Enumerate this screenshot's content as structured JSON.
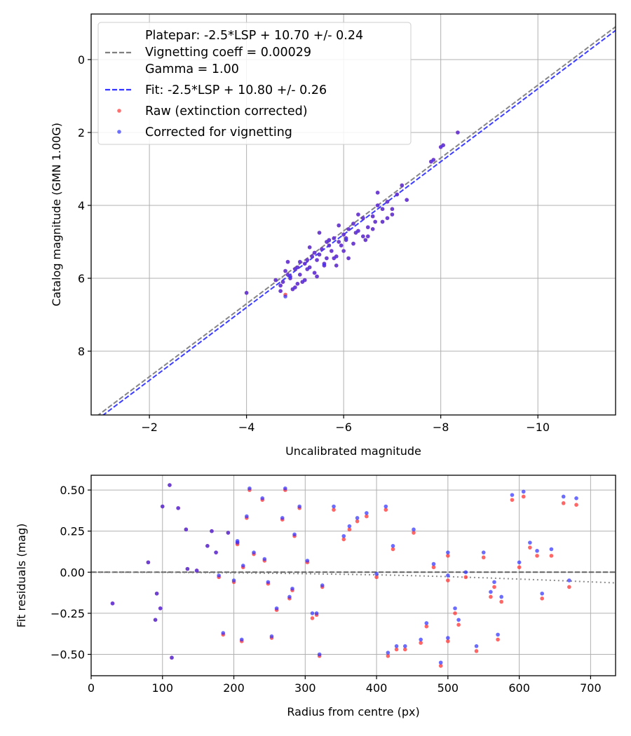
{
  "figure": {
    "legend": [
      {
        "label": "Platepar: -2.5*LSP + 10.70 +/- 0.24\nVignetting coeff = 0.00029\nGamma = 1.00",
        "style": "dashed-line",
        "color": "#808080"
      },
      {
        "label": "Fit: -2.5*LSP + 10.80 +/- 0.26",
        "style": "dashed-line",
        "color": "#3333ff"
      },
      {
        "label": "Raw (extinction corrected)",
        "style": "marker",
        "color": "#ff3333"
      },
      {
        "label": "Corrected for vignetting",
        "style": "marker",
        "color": "#3333ff"
      }
    ]
  },
  "chart_data": [
    {
      "type": "scatter",
      "xlabel": "Uncalibrated magnitude",
      "ylabel": "Catalog magnitude (GMN 1.00G)",
      "xlim": [
        -0.8,
        -11.6
      ],
      "ylim": [
        9.75,
        -1.25
      ],
      "xticks": [
        -2,
        -4,
        -6,
        -8,
        -10
      ],
      "xtick_labels": [
        "−2",
        "−4",
        "−6",
        "−8",
        "−10"
      ],
      "yticks": [
        0,
        2,
        4,
        6,
        8
      ],
      "ytick_labels": [
        "0",
        "2",
        "4",
        "6",
        "8"
      ],
      "grid": true,
      "legend_location": "top-left",
      "lines": [
        {
          "name": "Platepar",
          "color": "#808080",
          "dash": true,
          "intercept": 10.7
        },
        {
          "name": "Fit",
          "color": "#3333ff",
          "dash": true,
          "intercept": 10.8
        }
      ],
      "series": [
        {
          "name": "Raw (extinction corrected)",
          "color": "#ff3333",
          "x": [
            -4.0,
            -4.6,
            -4.7,
            -4.75,
            -4.8,
            -4.85,
            -4.9,
            -4.95,
            -5.0,
            -5.05,
            -5.1,
            -5.15,
            -5.2,
            -5.25,
            -5.3,
            -5.35,
            -5.4,
            -5.45,
            -5.5,
            -5.55,
            -5.6,
            -5.65,
            -5.7,
            -5.75,
            -5.8,
            -5.85,
            -5.9,
            -5.95,
            -6.0,
            -6.05,
            -6.1,
            -6.2,
            -6.3,
            -6.4,
            -6.5,
            -6.6,
            -6.7,
            -6.8,
            -6.9,
            -7.0,
            -7.1,
            -7.2,
            -7.3,
            -7.8,
            -8.0,
            -8.35,
            -4.8,
            -5.0,
            -5.2,
            -5.4,
            -5.6,
            -5.8,
            -6.0,
            -6.2,
            -6.4,
            -6.6,
            -6.8,
            -7.0,
            -4.7,
            -4.9,
            -5.1,
            -5.3,
            -5.5,
            -5.7,
            -5.9,
            -6.1,
            -6.3,
            -6.5,
            -6.7,
            -6.9,
            -7.85,
            -8.05,
            -4.85,
            -5.05,
            -5.25,
            -5.45,
            -5.65,
            -5.85,
            -6.05,
            -6.25,
            -6.45,
            -6.65
          ],
          "y": [
            6.4,
            6.05,
            6.2,
            6.1,
            5.8,
            5.9,
            6.0,
            6.3,
            5.75,
            5.7,
            5.9,
            6.1,
            5.6,
            5.5,
            5.7,
            5.4,
            5.3,
            5.5,
            5.35,
            5.2,
            5.6,
            5.0,
            5.1,
            5.25,
            4.9,
            5.4,
            5.0,
            5.1,
            4.8,
            4.9,
            4.65,
            4.5,
            4.7,
            4.35,
            4.6,
            4.3,
            4.0,
            4.1,
            3.9,
            4.1,
            3.7,
            3.45,
            3.85,
            2.8,
            2.4,
            2.0,
            6.45,
            6.25,
            6.05,
            5.85,
            5.65,
            5.45,
            5.25,
            5.05,
            4.85,
            4.65,
            4.45,
            4.25,
            6.35,
            5.95,
            5.55,
            5.15,
            4.75,
            4.95,
            4.55,
            5.45,
            4.25,
            4.85,
            3.65,
            4.35,
            2.75,
            2.35,
            5.55,
            6.15,
            5.75,
            5.95,
            5.45,
            5.65,
            4.95,
            4.75,
            4.95,
            4.45
          ]
        },
        {
          "name": "Corrected for vignetting",
          "color": "#3333ff",
          "x": [
            -4.0,
            -4.6,
            -4.7,
            -4.75,
            -4.8,
            -4.85,
            -4.9,
            -4.95,
            -5.0,
            -5.05,
            -5.1,
            -5.15,
            -5.2,
            -5.25,
            -5.3,
            -5.35,
            -5.4,
            -5.45,
            -5.5,
            -5.55,
            -5.6,
            -5.65,
            -5.7,
            -5.75,
            -5.8,
            -5.85,
            -5.9,
            -5.95,
            -6.0,
            -6.05,
            -6.1,
            -6.2,
            -6.3,
            -6.4,
            -6.5,
            -6.6,
            -6.7,
            -6.8,
            -6.9,
            -7.0,
            -7.1,
            -7.2,
            -7.3,
            -7.8,
            -8.0,
            -8.35,
            -4.8,
            -5.0,
            -5.2,
            -5.4,
            -5.6,
            -5.8,
            -6.0,
            -6.2,
            -6.4,
            -6.6,
            -6.8,
            -7.0,
            -4.7,
            -4.9,
            -5.1,
            -5.3,
            -5.5,
            -5.7,
            -5.9,
            -6.1,
            -6.3,
            -6.5,
            -6.7,
            -6.9,
            -7.85,
            -8.05,
            -4.85,
            -5.05,
            -5.25,
            -5.45,
            -5.65,
            -5.85,
            -6.05,
            -6.25,
            -6.45,
            -6.65
          ],
          "y": [
            6.4,
            6.05,
            6.2,
            6.1,
            5.8,
            5.9,
            6.0,
            6.3,
            5.75,
            5.7,
            5.9,
            6.1,
            5.6,
            5.5,
            5.7,
            5.4,
            5.3,
            5.5,
            5.35,
            5.2,
            5.6,
            5.0,
            5.1,
            5.25,
            4.9,
            5.4,
            5.0,
            5.1,
            4.8,
            4.9,
            4.65,
            4.5,
            4.7,
            4.35,
            4.6,
            4.3,
            4.0,
            4.1,
            3.9,
            4.1,
            3.7,
            3.45,
            3.85,
            2.8,
            2.4,
            2.0,
            6.5,
            6.25,
            6.05,
            5.85,
            5.65,
            5.45,
            5.25,
            5.05,
            4.85,
            4.65,
            4.45,
            4.25,
            6.35,
            5.95,
            5.55,
            5.15,
            4.75,
            4.95,
            4.55,
            5.45,
            4.25,
            4.85,
            3.65,
            4.35,
            2.75,
            2.35,
            5.55,
            6.15,
            5.75,
            5.95,
            5.45,
            5.65,
            4.95,
            4.75,
            4.95,
            4.45
          ]
        }
      ]
    },
    {
      "type": "scatter",
      "xlabel": "Radius from centre (px)",
      "ylabel": "Fit residuals (mag)",
      "xlim": [
        0,
        735
      ],
      "ylim": [
        -0.63,
        0.59
      ],
      "xticks": [
        0,
        100,
        200,
        300,
        400,
        500,
        600,
        700
      ],
      "xtick_labels": [
        "0",
        "100",
        "200",
        "300",
        "400",
        "500",
        "600",
        "700"
      ],
      "yticks": [
        -0.5,
        -0.25,
        0.0,
        0.25,
        0.5
      ],
      "ytick_labels": [
        "−0.50",
        "−0.25",
        "0.00",
        "0.25",
        "0.50"
      ],
      "grid": true,
      "lines": [
        {
          "name": "zero",
          "color": "#555555",
          "dash": true,
          "x": [
            0,
            735
          ],
          "y": [
            0,
            0
          ]
        },
        {
          "name": "vignetting model",
          "color": "#808080",
          "dotted": true,
          "x": [
            0,
            100,
            200,
            300,
            400,
            450,
            500,
            550,
            600,
            650,
            700,
            735
          ],
          "y": [
            0,
            -0.001,
            -0.004,
            -0.009,
            -0.016,
            -0.021,
            -0.027,
            -0.034,
            -0.042,
            -0.05,
            -0.059,
            -0.065
          ]
        }
      ],
      "series": [
        {
          "name": "Raw (extinction corrected)",
          "color": "#ff3333",
          "x": [
            30,
            80,
            90,
            92,
            97,
            100,
            110,
            113,
            122,
            133,
            135,
            148,
            163,
            169,
            175,
            179,
            185,
            192,
            200,
            205,
            211,
            213,
            218,
            222,
            228,
            240,
            243,
            248,
            253,
            260,
            268,
            272,
            278,
            282,
            285,
            292,
            303,
            316,
            320,
            324,
            340,
            354,
            362,
            373,
            386,
            400,
            413,
            416,
            423,
            428,
            440,
            452,
            462,
            470,
            480,
            490,
            500,
            500,
            510,
            515,
            525,
            540,
            550,
            560,
            565,
            570,
            575,
            590,
            600,
            606,
            615,
            625,
            632,
            645,
            662,
            670,
            680,
            500,
            310,
            205
          ],
          "y": [
            -0.19,
            0.06,
            -0.29,
            -0.13,
            -0.22,
            0.4,
            0.53,
            -0.52,
            0.39,
            0.26,
            0.02,
            0.01,
            0.16,
            0.25,
            0.12,
            -0.03,
            -0.38,
            0.24,
            -0.06,
            0.18,
            -0.42,
            0.03,
            0.33,
            0.5,
            0.11,
            0.44,
            0.07,
            -0.07,
            -0.4,
            -0.23,
            0.32,
            0.5,
            -0.16,
            -0.11,
            0.22,
            0.39,
            0.06,
            -0.26,
            -0.51,
            -0.09,
            0.38,
            0.2,
            0.26,
            0.31,
            0.34,
            -0.03,
            0.38,
            -0.51,
            0.14,
            -0.47,
            -0.47,
            0.24,
            -0.43,
            -0.33,
            0.03,
            -0.57,
            0.1,
            -0.42,
            -0.25,
            -0.32,
            -0.03,
            -0.48,
            0.09,
            -0.15,
            -0.09,
            -0.41,
            -0.18,
            0.44,
            0.03,
            0.46,
            0.15,
            0.1,
            -0.16,
            0.1,
            0.42,
            -0.09,
            0.41,
            -0.05,
            -0.28,
            0.17
          ]
        },
        {
          "name": "Corrected for vignetting",
          "color": "#3333ff",
          "x": [
            30,
            80,
            90,
            92,
            97,
            100,
            110,
            113,
            122,
            133,
            135,
            148,
            163,
            169,
            175,
            179,
            185,
            192,
            200,
            205,
            211,
            213,
            218,
            222,
            228,
            240,
            243,
            248,
            253,
            260,
            268,
            272,
            278,
            282,
            285,
            292,
            303,
            316,
            320,
            324,
            340,
            354,
            362,
            373,
            386,
            400,
            413,
            416,
            423,
            428,
            440,
            452,
            462,
            470,
            480,
            490,
            500,
            500,
            510,
            515,
            525,
            540,
            550,
            560,
            565,
            570,
            575,
            590,
            600,
            606,
            615,
            625,
            632,
            645,
            662,
            670,
            680,
            500,
            310,
            205
          ],
          "y": [
            -0.19,
            0.06,
            -0.29,
            -0.13,
            -0.22,
            0.4,
            0.53,
            -0.52,
            0.39,
            0.26,
            0.02,
            0.01,
            0.16,
            0.25,
            0.12,
            -0.02,
            -0.37,
            0.24,
            -0.05,
            0.18,
            -0.41,
            0.04,
            0.34,
            0.51,
            0.12,
            0.45,
            0.08,
            -0.06,
            -0.39,
            -0.22,
            0.33,
            0.51,
            -0.15,
            -0.1,
            0.23,
            0.4,
            0.07,
            -0.25,
            -0.5,
            -0.08,
            0.4,
            0.22,
            0.28,
            0.33,
            0.36,
            -0.01,
            0.4,
            -0.49,
            0.16,
            -0.45,
            -0.45,
            0.26,
            -0.41,
            -0.31,
            0.05,
            -0.55,
            0.12,
            -0.4,
            -0.22,
            -0.29,
            0.0,
            -0.45,
            0.12,
            -0.12,
            -0.06,
            -0.38,
            -0.15,
            0.47,
            0.06,
            0.49,
            0.18,
            0.13,
            -0.13,
            0.14,
            0.46,
            -0.05,
            0.45,
            -0.02,
            -0.25,
            0.19
          ]
        }
      ]
    }
  ]
}
